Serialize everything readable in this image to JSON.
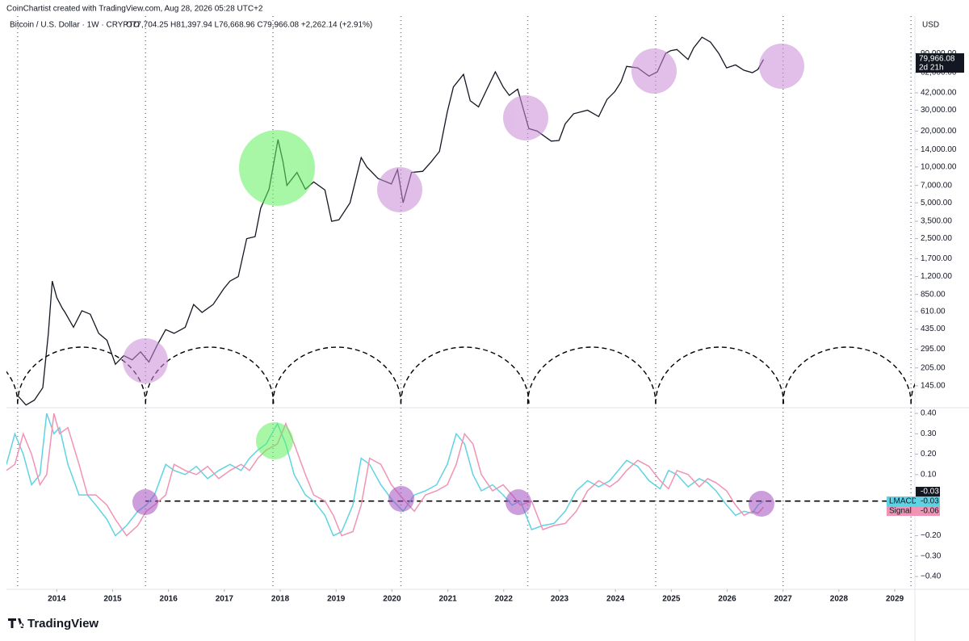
{
  "header": {
    "credit": "CoinChartist created with TradingView.com, Aug 28, 2026 05:28 UTC+2",
    "currency": "USD",
    "footer": "TradingView"
  },
  "chart_data": [
    {
      "type": "line",
      "title": "Bitcoin / U.S. Dollar · 1W · CRYPTO",
      "ohlc": "O77,704.25 H81,397.94 L76,668.96 C79,966.08 +2,262.14 (+2.91%)",
      "log_scale": true,
      "xlim": [
        2013.1,
        2029.36
      ],
      "ylim": [
        95,
        185000
      ],
      "yticks": [
        {
          "value": 145,
          "label": "145.00"
        },
        {
          "value": 205,
          "label": "205.00"
        },
        {
          "value": 295,
          "label": "295.00"
        },
        {
          "value": 435,
          "label": "435.00"
        },
        {
          "value": 610,
          "label": "610.00"
        },
        {
          "value": 850,
          "label": "850.00"
        },
        {
          "value": 1200,
          "label": "1,200.00"
        },
        {
          "value": 1700,
          "label": "1,700.00"
        },
        {
          "value": 2500,
          "label": "2,500.00"
        },
        {
          "value": 3500,
          "label": "3,500.00"
        },
        {
          "value": 5000,
          "label": "5,000.00"
        },
        {
          "value": 7000,
          "label": "7,000.00"
        },
        {
          "value": 10000,
          "label": "10,000.00"
        },
        {
          "value": 14000,
          "label": "14,000.00"
        },
        {
          "value": 20000,
          "label": "20,000.00"
        },
        {
          "value": 30000,
          "label": "30,000.00"
        },
        {
          "value": 42000,
          "label": "42,000.00"
        },
        {
          "value": 62000,
          "label": "62,000.00"
        },
        {
          "value": 90000,
          "label": "90,000.00"
        }
      ],
      "cycle_lines": [
        2013.3,
        2015.59,
        2017.87,
        2020.16,
        2022.43,
        2024.72,
        2027.0,
        2029.29
      ],
      "price_label": "79,966.08",
      "countdown": "2d 21h",
      "series": [
        {
          "name": "Bitcoin / U.S. Dollar",
          "color": "#131722",
          "x": [
            2013.3,
            2013.45,
            2013.6,
            2013.75,
            2013.85,
            2013.92,
            2014.0,
            2014.1,
            2014.15,
            2014.3,
            2014.45,
            2014.6,
            2014.75,
            2014.9,
            2015.05,
            2015.2,
            2015.35,
            2015.5,
            2015.65,
            2015.8,
            2015.95,
            2016.1,
            2016.3,
            2016.45,
            2016.6,
            2016.8,
            2016.99,
            2017.1,
            2017.25,
            2017.4,
            2017.55,
            2017.65,
            2017.8,
            2017.96,
            2018.05,
            2018.12,
            2018.3,
            2018.45,
            2018.6,
            2018.8,
            2018.92,
            2019.05,
            2019.25,
            2019.45,
            2019.55,
            2019.75,
            2019.99,
            2020.1,
            2020.2,
            2020.35,
            2020.55,
            2020.7,
            2020.85,
            2020.99,
            2021.1,
            2021.28,
            2021.4,
            2021.55,
            2021.7,
            2021.85,
            2021.99,
            2022.1,
            2022.25,
            2022.45,
            2022.6,
            2022.85,
            2022.99,
            2023.1,
            2023.25,
            2023.5,
            2023.7,
            2023.85,
            2023.99,
            2024.1,
            2024.2,
            2024.4,
            2024.6,
            2024.75,
            2024.9,
            2024.99,
            2025.1,
            2025.3,
            2025.4,
            2025.55,
            2025.7,
            2025.85,
            2025.99,
            2026.15,
            2026.3,
            2026.45,
            2026.55,
            2026.65
          ],
          "values": [
            120,
            100,
            110,
            140,
            400,
            1100,
            800,
            650,
            600,
            450,
            620,
            580,
            400,
            350,
            220,
            260,
            240,
            280,
            230,
            320,
            430,
            400,
            450,
            700,
            600,
            700,
            950,
            1100,
            1200,
            2500,
            2600,
            4500,
            6500,
            17000,
            11000,
            7000,
            9000,
            6500,
            7500,
            6400,
            3500,
            3600,
            5000,
            12000,
            10000,
            8000,
            7200,
            9500,
            5000,
            9000,
            9200,
            11000,
            13500,
            29000,
            47000,
            60000,
            36000,
            32000,
            45000,
            63000,
            47000,
            40000,
            45000,
            21000,
            20000,
            16500,
            16700,
            23000,
            28000,
            30000,
            26500,
            37000,
            43000,
            52000,
            70000,
            68000,
            58000,
            63000,
            90000,
            95000,
            97000,
            80000,
            100000,
            123000,
            112000,
            90000,
            68000,
            72000,
            65000,
            62000,
            66000,
            79966
          ]
        }
      ]
    },
    {
      "type": "line",
      "xlim": [
        2013.1,
        2029.36
      ],
      "ylim": [
        -0.463,
        0.428
      ],
      "xticks": [
        2014,
        2015,
        2016,
        2017,
        2018,
        2019,
        2020,
        2021,
        2022,
        2023,
        2024,
        2025,
        2026,
        2027,
        2028,
        2029
      ],
      "yticks": [
        {
          "value": 0.4,
          "label": "0.40"
        },
        {
          "value": 0.3,
          "label": "0.30"
        },
        {
          "value": 0.2,
          "label": "0.20"
        },
        {
          "value": 0.1,
          "label": "0.10"
        },
        {
          "value": -0.2,
          "label": "−0.20"
        },
        {
          "value": -0.3,
          "label": "−0.30"
        },
        {
          "value": -0.4,
          "label": "−0.40"
        }
      ],
      "level": -0.03,
      "x": [
        2013.1,
        2013.25,
        2013.4,
        2013.55,
        2013.7,
        2013.82,
        2013.95,
        2014.05,
        2014.2,
        2014.4,
        2014.55,
        2014.7,
        2014.9,
        2015.05,
        2015.25,
        2015.45,
        2015.6,
        2015.75,
        2015.95,
        2016.1,
        2016.3,
        2016.5,
        2016.7,
        2016.9,
        2017.1,
        2017.3,
        2017.45,
        2017.6,
        2017.75,
        2017.95,
        2018.1,
        2018.25,
        2018.45,
        2018.6,
        2018.8,
        2018.95,
        2019.1,
        2019.3,
        2019.45,
        2019.6,
        2019.8,
        2019.99,
        2020.2,
        2020.4,
        2020.6,
        2020.8,
        2020.99,
        2021.15,
        2021.3,
        2021.45,
        2021.6,
        2021.8,
        2021.99,
        2022.15,
        2022.3,
        2022.5,
        2022.7,
        2022.9,
        2023.1,
        2023.3,
        2023.5,
        2023.7,
        2023.9,
        2024.05,
        2024.2,
        2024.4,
        2024.6,
        2024.8,
        2024.95,
        2025.1,
        2025.3,
        2025.5,
        2025.65,
        2025.8,
        2025.99,
        2026.15,
        2026.3,
        2026.45,
        2026.55,
        2026.65
      ],
      "series": [
        {
          "name": "LMACD",
          "color": "#5fd3e4",
          "values": [
            0.15,
            0.3,
            0.2,
            0.05,
            0.1,
            0.4,
            0.3,
            0.33,
            0.15,
            0.0,
            0.0,
            -0.05,
            -0.12,
            -0.2,
            -0.15,
            -0.08,
            -0.05,
            0.0,
            0.15,
            0.12,
            0.1,
            0.14,
            0.08,
            0.12,
            0.15,
            0.12,
            0.18,
            0.22,
            0.25,
            0.35,
            0.25,
            0.1,
            0.0,
            -0.03,
            -0.1,
            -0.2,
            -0.18,
            -0.05,
            0.18,
            0.15,
            0.05,
            -0.02,
            -0.08,
            0.0,
            0.02,
            0.05,
            0.15,
            0.3,
            0.25,
            0.1,
            0.02,
            0.05,
            0.0,
            -0.05,
            -0.03,
            -0.17,
            -0.15,
            -0.14,
            -0.08,
            0.02,
            0.07,
            0.04,
            0.07,
            0.12,
            0.17,
            0.14,
            0.07,
            0.03,
            0.12,
            0.1,
            0.04,
            0.08,
            0.06,
            0.02,
            -0.05,
            -0.1,
            -0.08,
            -0.09,
            -0.05,
            -0.03
          ]
        },
        {
          "name": "Signal",
          "color": "#f093b5",
          "values": [
            0.12,
            0.15,
            0.3,
            0.2,
            0.05,
            0.1,
            0.4,
            0.3,
            0.33,
            0.15,
            0.0,
            0.0,
            -0.05,
            -0.12,
            -0.2,
            -0.15,
            -0.08,
            -0.05,
            0.0,
            0.15,
            0.12,
            0.1,
            0.14,
            0.08,
            0.12,
            0.15,
            0.12,
            0.18,
            0.22,
            0.25,
            0.35,
            0.25,
            0.1,
            0.0,
            -0.03,
            -0.1,
            -0.2,
            -0.18,
            -0.05,
            0.18,
            0.15,
            0.05,
            -0.02,
            -0.08,
            0.0,
            0.02,
            0.05,
            0.15,
            0.3,
            0.25,
            0.1,
            0.02,
            0.05,
            0.0,
            -0.05,
            -0.03,
            -0.17,
            -0.15,
            -0.14,
            -0.08,
            0.02,
            0.07,
            0.04,
            0.07,
            0.12,
            0.17,
            0.14,
            0.07,
            0.03,
            0.12,
            0.1,
            0.04,
            0.08,
            0.06,
            0.02,
            -0.05,
            -0.1,
            -0.08,
            -0.09,
            -0.06
          ]
        }
      ]
    }
  ]
}
